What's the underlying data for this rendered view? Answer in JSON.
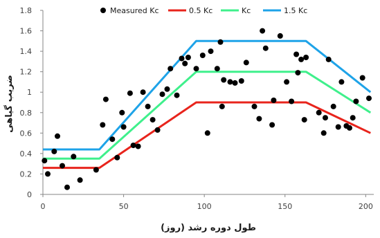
{
  "chart_data": {
    "type": "scatter",
    "xlabel": "طول دوره رشد (روز)",
    "ylabel": "ضریب گیاهی",
    "xlim": [
      0,
      205
    ],
    "ylim": [
      0,
      1.8
    ],
    "x_ticks": [
      "0",
      "50",
      "100",
      "150",
      "200"
    ],
    "y_ticks": [
      "0",
      "0.2",
      "0.4",
      "0.6",
      "0.8",
      "1",
      "1.2",
      "1.4",
      "1.6",
      "1.8"
    ],
    "grid": false,
    "legend_position": "top",
    "series": [
      {
        "name": "Measured Kc",
        "kind": "scatter",
        "color": "#000000",
        "points": [
          [
            1,
            0.33
          ],
          [
            3,
            0.2
          ],
          [
            7,
            0.42
          ],
          [
            9,
            0.57
          ],
          [
            12,
            0.28
          ],
          [
            15,
            0.07
          ],
          [
            19,
            0.37
          ],
          [
            23,
            0.14
          ],
          [
            33,
            0.24
          ],
          [
            37,
            0.68
          ],
          [
            39,
            0.93
          ],
          [
            43,
            0.54
          ],
          [
            46,
            0.36
          ],
          [
            49,
            0.8
          ],
          [
            50,
            0.66
          ],
          [
            54,
            0.99
          ],
          [
            56,
            0.48
          ],
          [
            59,
            0.47
          ],
          [
            62,
            1.0
          ],
          [
            65,
            0.86
          ],
          [
            68,
            0.73
          ],
          [
            71,
            0.63
          ],
          [
            74,
            0.98
          ],
          [
            77,
            1.03
          ],
          [
            79,
            1.23
          ],
          [
            83,
            0.97
          ],
          [
            86,
            1.33
          ],
          [
            88,
            1.28
          ],
          [
            90,
            1.34
          ],
          [
            95,
            1.23
          ],
          [
            99,
            1.36
          ],
          [
            102,
            0.6
          ],
          [
            104,
            1.4
          ],
          [
            108,
            1.23
          ],
          [
            110,
            1.49
          ],
          [
            111,
            0.86
          ],
          [
            112,
            1.12
          ],
          [
            116,
            1.1
          ],
          [
            119,
            1.09
          ],
          [
            123,
            1.11
          ],
          [
            126,
            1.29
          ],
          [
            131,
            0.86
          ],
          [
            134,
            0.74
          ],
          [
            136,
            1.6
          ],
          [
            138,
            1.43
          ],
          [
            142,
            0.68
          ],
          [
            143,
            0.92
          ],
          [
            147,
            1.55
          ],
          [
            151,
            1.1
          ],
          [
            154,
            0.91
          ],
          [
            157,
            1.37
          ],
          [
            158,
            1.19
          ],
          [
            160,
            1.32
          ],
          [
            162,
            0.73
          ],
          [
            163,
            1.34
          ],
          [
            171,
            0.8
          ],
          [
            174,
            0.6
          ],
          [
            175,
            0.75
          ],
          [
            177,
            1.32
          ],
          [
            180,
            0.86
          ],
          [
            183,
            0.66
          ],
          [
            185,
            1.1
          ],
          [
            188,
            0.67
          ],
          [
            190,
            0.65
          ],
          [
            192,
            0.75
          ],
          [
            194,
            0.91
          ],
          [
            198,
            1.14
          ],
          [
            202,
            0.94
          ]
        ]
      },
      {
        "name": "0.5 Kc",
        "kind": "line",
        "color": "#e8241c",
        "points": [
          [
            0,
            0.26
          ],
          [
            35,
            0.26
          ],
          [
            95,
            0.9
          ],
          [
            163,
            0.9
          ],
          [
            203,
            0.6
          ]
        ]
      },
      {
        "name": "Kc",
        "kind": "line",
        "color": "#3ff08c",
        "points": [
          [
            0,
            0.35
          ],
          [
            35,
            0.35
          ],
          [
            95,
            1.2
          ],
          [
            163,
            1.2
          ],
          [
            203,
            0.8
          ]
        ]
      },
      {
        "name": "1.5 Kc",
        "kind": "line",
        "color": "#1ea3e8",
        "points": [
          [
            0,
            0.44
          ],
          [
            35,
            0.44
          ],
          [
            95,
            1.5
          ],
          [
            163,
            1.5
          ],
          [
            203,
            1.0
          ]
        ]
      }
    ]
  }
}
